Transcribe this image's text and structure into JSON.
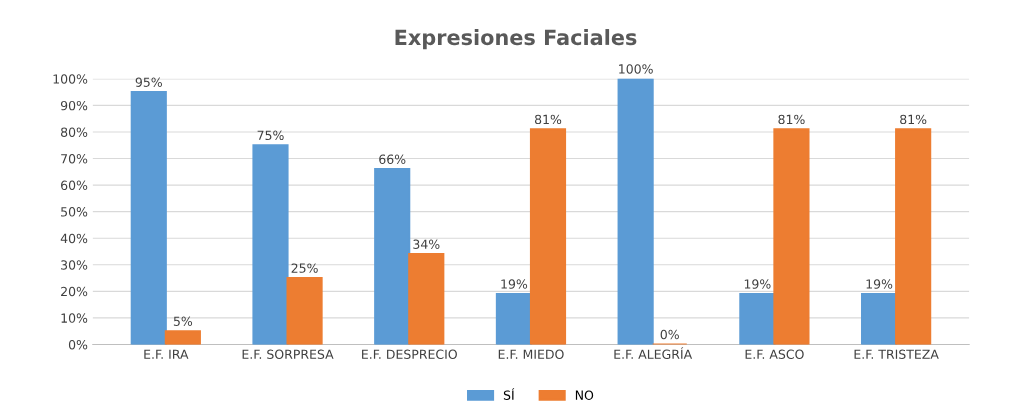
{
  "chart_data": {
    "type": "bar",
    "title": "Expresiones Faciales",
    "categories": [
      "E.F. IRA",
      "E.F. SORPRESA",
      "E.F. DESPRECIO",
      "E.F. MIEDO",
      "E.F. ALEGRÍA",
      "E.F. ASCO",
      "E.F. TRISTEZA"
    ],
    "series": [
      {
        "name": "SÍ",
        "color": "#5b9bd5",
        "values": [
          95,
          75,
          66,
          19,
          100,
          19,
          19
        ],
        "value_labels": [
          "95%",
          "75%",
          "66%",
          "19%",
          "100%",
          "19%",
          "19%"
        ]
      },
      {
        "name": "NO",
        "color": "#ed7d31",
        "values": [
          5,
          25,
          34,
          81,
          0,
          81,
          81
        ],
        "value_labels": [
          "5%",
          "25%",
          "34%",
          "81%",
          "0%",
          "81%",
          "81%"
        ]
      }
    ],
    "ylim": [
      0,
      100
    ],
    "yticks": [
      {
        "value": 0,
        "label": "0%"
      },
      {
        "value": 10,
        "label": "10%"
      },
      {
        "value": 20,
        "label": "20%"
      },
      {
        "value": 30,
        "label": "30%"
      },
      {
        "value": 40,
        "label": "40%"
      },
      {
        "value": 50,
        "label": "50%"
      },
      {
        "value": 60,
        "label": "60%"
      },
      {
        "value": 70,
        "label": "70%"
      },
      {
        "value": 80,
        "label": "80%"
      },
      {
        "value": 90,
        "label": "90%"
      },
      {
        "value": 100,
        "label": "100%"
      }
    ],
    "grid": "y",
    "legend": "bottom"
  }
}
